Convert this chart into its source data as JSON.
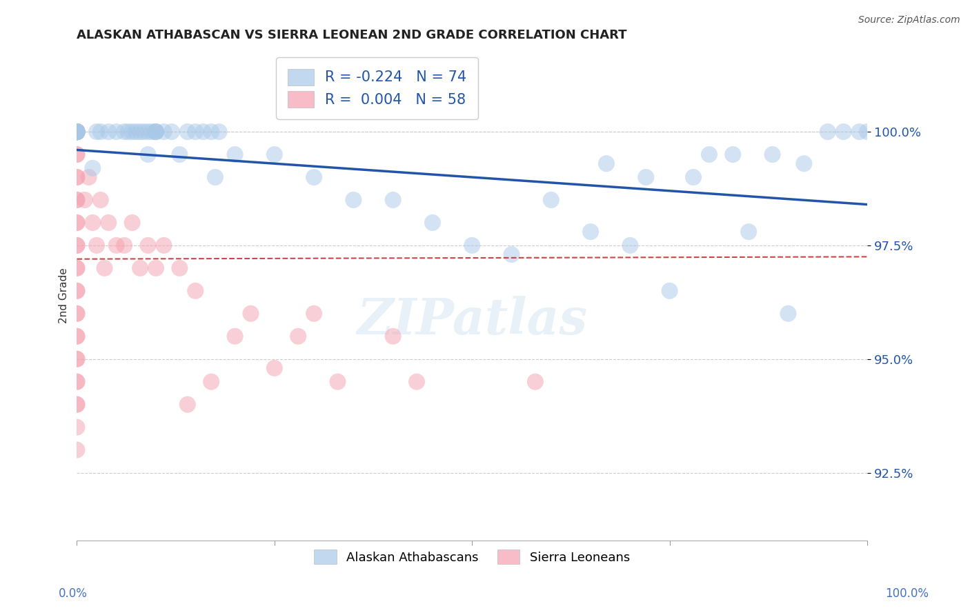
{
  "title": "ALASKAN ATHABASCAN VS SIERRA LEONEAN 2ND GRADE CORRELATION CHART",
  "source": "Source: ZipAtlas.com",
  "ylabel": "2nd Grade",
  "legend_blue_r": "R = -0.224",
  "legend_blue_n": "N = 74",
  "legend_pink_r": "R =  0.004",
  "legend_pink_n": "N = 58",
  "legend_blue_label": "Alaskan Athabascans",
  "legend_pink_label": "Sierra Leoneans",
  "blue_color": "#a8c8e8",
  "pink_color": "#f4a0b0",
  "trend_blue_color": "#2255aa",
  "trend_pink_color": "#cc4444",
  "background_color": "#ffffff",
  "grid_color": "#cccccc",
  "axis_label_color": "#4472c4",
  "yaxis_label_color": "#2255aa",
  "ylim": [
    91.0,
    101.8
  ],
  "xlim": [
    0,
    100
  ],
  "yticks": [
    92.5,
    95.0,
    97.5,
    100.0
  ],
  "blue_x": [
    0.0,
    0.0,
    0.0,
    0.0,
    0.0,
    0.0,
    0.0,
    0.0,
    0.0,
    0.0,
    0.0,
    0.0,
    0.0,
    0.0,
    0.0,
    0.0,
    0.0,
    0.0,
    0.0,
    0.0,
    0.0,
    0.0,
    0.0,
    2.0,
    2.5,
    3.0,
    4.0,
    5.0,
    6.0,
    6.5,
    7.0,
    7.5,
    8.0,
    8.5,
    9.0,
    9.0,
    9.5,
    10.0,
    10.0,
    10.0,
    11.0,
    12.0,
    13.0,
    14.0,
    15.0,
    16.0,
    17.0,
    17.5,
    18.0,
    20.0,
    25.0,
    30.0,
    35.0,
    40.0,
    45.0,
    50.0,
    55.0,
    60.0,
    65.0,
    67.0,
    70.0,
    72.0,
    75.0,
    78.0,
    80.0,
    83.0,
    85.0,
    88.0,
    90.0,
    92.0,
    95.0,
    97.0,
    99.0,
    100.0
  ],
  "blue_y": [
    100.0,
    100.0,
    100.0,
    100.0,
    100.0,
    100.0,
    100.0,
    100.0,
    100.0,
    100.0,
    100.0,
    100.0,
    100.0,
    100.0,
    100.0,
    100.0,
    100.0,
    100.0,
    100.0,
    100.0,
    100.0,
    100.0,
    100.0,
    99.2,
    100.0,
    100.0,
    100.0,
    100.0,
    100.0,
    100.0,
    100.0,
    100.0,
    100.0,
    100.0,
    100.0,
    99.5,
    100.0,
    100.0,
    100.0,
    100.0,
    100.0,
    100.0,
    99.5,
    100.0,
    100.0,
    100.0,
    100.0,
    99.0,
    100.0,
    99.5,
    99.5,
    99.0,
    98.5,
    98.5,
    98.0,
    97.5,
    97.3,
    98.5,
    97.8,
    99.3,
    97.5,
    99.0,
    96.5,
    99.0,
    99.5,
    99.5,
    97.8,
    99.5,
    96.0,
    99.3,
    100.0,
    100.0,
    100.0,
    100.0
  ],
  "pink_x": [
    0.0,
    0.0,
    0.0,
    0.0,
    0.0,
    0.0,
    0.0,
    0.0,
    0.0,
    0.0,
    0.0,
    0.0,
    0.0,
    0.0,
    0.0,
    0.0,
    0.0,
    0.0,
    0.0,
    0.0,
    0.0,
    0.0,
    0.0,
    0.0,
    0.0,
    0.0,
    0.0,
    0.0,
    0.0,
    0.0,
    0.0,
    1.0,
    1.5,
    2.0,
    2.5,
    3.0,
    3.5,
    4.0,
    5.0,
    6.0,
    7.0,
    8.0,
    9.0,
    10.0,
    11.0,
    13.0,
    14.0,
    15.0,
    17.0,
    20.0,
    22.0,
    25.0,
    28.0,
    30.0,
    33.0,
    40.0,
    43.0,
    58.0
  ],
  "pink_y": [
    100.0,
    100.0,
    100.0,
    100.0,
    100.0,
    99.5,
    99.5,
    99.0,
    98.5,
    98.0,
    97.5,
    97.0,
    96.5,
    96.0,
    95.5,
    95.0,
    94.5,
    94.0,
    93.5,
    93.0,
    99.0,
    98.5,
    98.0,
    97.5,
    97.0,
    96.5,
    96.0,
    95.5,
    95.0,
    94.5,
    94.0,
    98.5,
    99.0,
    98.0,
    97.5,
    98.5,
    97.0,
    98.0,
    97.5,
    97.5,
    98.0,
    97.0,
    97.5,
    97.0,
    97.5,
    97.0,
    94.0,
    96.5,
    94.5,
    95.5,
    96.0,
    94.8,
    95.5,
    96.0,
    94.5,
    95.5,
    94.5,
    94.5
  ]
}
